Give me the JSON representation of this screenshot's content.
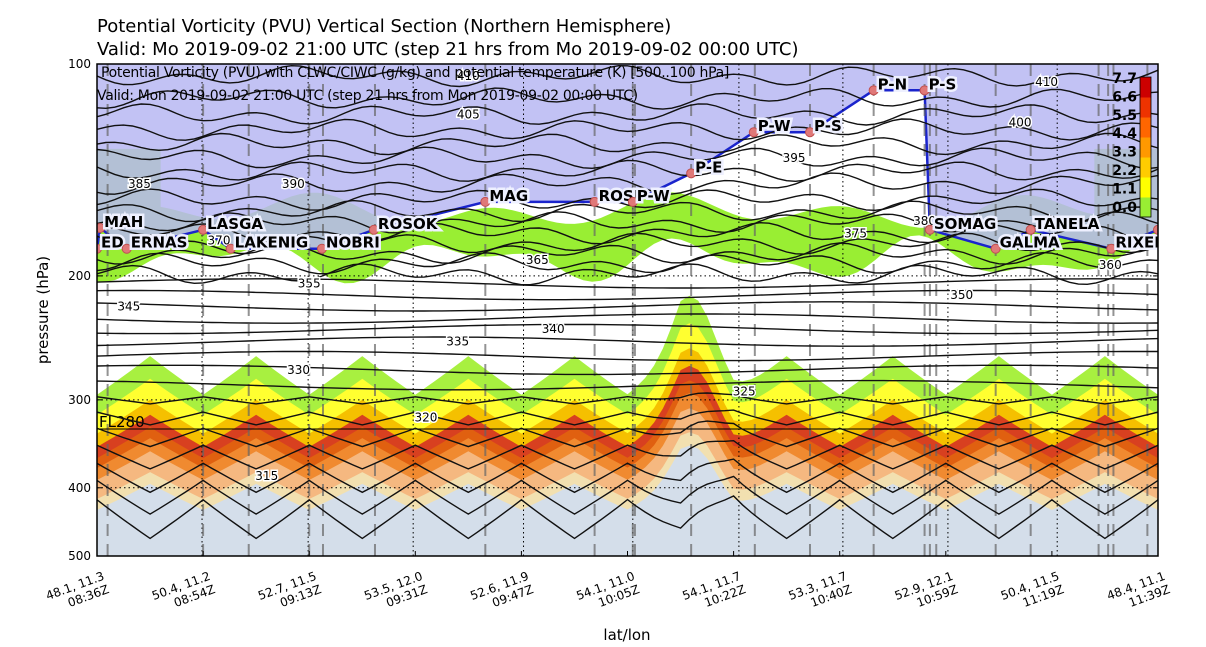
{
  "figure": {
    "title_line1": "Potential Vorticity (PVU) Vertical Section (Northern Hemisphere)",
    "title_line2": "Valid: Mo 2019-09-02 21:00 UTC (step 21 hrs from Mo 2019-09-02 00:00 UTC)",
    "inner_title_line1": "Potential Vorticity (PVU) with CLWC/CIWC (g/kg) and potential temperature (K) [500..100 hPa]",
    "inner_title_line2": "Valid: Mon 2019-09-02 21:00 UTC (step 21 hrs from Mon 2019-09-02 00:00 UTC)"
  },
  "colors": {
    "pv_background": "#d4deea",
    "pv_bands": [
      "#f2e0b0",
      "#f5b880",
      "#f08a30",
      "#e06010",
      "#d84020",
      "#f5c000",
      "#ffff30",
      "#a8f040"
    ],
    "upper_pv": "#99ee33",
    "upper_pv_dark": "#6a9a5a",
    "route_fill": "#b7b7f2",
    "route_line": "#1a24cc",
    "waypoint": "#e07878",
    "colorbar": [
      "#99ee33",
      "#ffff00",
      "#ffcc00",
      "#ff9900",
      "#ff6600",
      "#ee3300",
      "#cc0000"
    ]
  },
  "colorbar_labels": [
    "7.7",
    "6.6",
    "5.5",
    "4.4",
    "3.3",
    "2.2",
    "1.1",
    "0.0"
  ],
  "chart_data": {
    "type": "vertical-cross-section",
    "xlabel": "lat/lon",
    "ylabel": "pressure (hPa)",
    "ylim": [
      500,
      100
    ],
    "y_scale": "log",
    "y_ticks": [
      100,
      200,
      300,
      400,
      500
    ],
    "x_ticks": [
      {
        "latlon": "48.1, 11.3",
        "time": "08:36Z"
      },
      {
        "latlon": "50.4, 11.2",
        "time": "08:54Z"
      },
      {
        "latlon": "52.7, 11.5",
        "time": "09:13Z"
      },
      {
        "latlon": "53.5, 12.0",
        "time": "09:31Z"
      },
      {
        "latlon": "52.6, 11.9",
        "time": "09:47Z"
      },
      {
        "latlon": "54.1, 11.0",
        "time": "10:05Z"
      },
      {
        "latlon": "54.1, 11.7",
        "time": "10:22Z"
      },
      {
        "latlon": "53.3, 11.7",
        "time": "10:40Z"
      },
      {
        "latlon": "52.9, 12.1",
        "time": "10:59Z"
      },
      {
        "latlon": "50.4, 11.5",
        "time": "11:19Z"
      },
      {
        "latlon": "48.4, 11.1",
        "time": "11:39Z"
      }
    ],
    "flight_level_label": "FL280",
    "flight_level_hpa": 330,
    "isentrope_labels": [
      {
        "label": "410",
        "x": 0.35,
        "p": 104
      },
      {
        "label": "405",
        "x": 0.35,
        "p": 118
      },
      {
        "label": "410",
        "x": 0.895,
        "p": 106
      },
      {
        "label": "400",
        "x": 0.87,
        "p": 121
      },
      {
        "label": "395",
        "x": 0.657,
        "p": 136
      },
      {
        "label": "390",
        "x": 0.185,
        "p": 148
      },
      {
        "label": "385",
        "x": 0.04,
        "p": 148
      },
      {
        "label": "380",
        "x": 0.78,
        "p": 167
      },
      {
        "label": "375",
        "x": 0.715,
        "p": 174
      },
      {
        "label": "370",
        "x": 0.115,
        "p": 178
      },
      {
        "label": "365",
        "x": 0.415,
        "p": 190
      },
      {
        "label": "360",
        "x": 0.955,
        "p": 193
      },
      {
        "label": "355",
        "x": 0.2,
        "p": 205
      },
      {
        "label": "350",
        "x": 0.815,
        "p": 213
      },
      {
        "label": "345",
        "x": 0.03,
        "p": 221
      },
      {
        "label": "340",
        "x": 0.43,
        "p": 238
      },
      {
        "label": "335",
        "x": 0.34,
        "p": 248
      },
      {
        "label": "330",
        "x": 0.19,
        "p": 272
      },
      {
        "label": "325",
        "x": 0.61,
        "p": 292
      },
      {
        "label": "320",
        "x": 0.31,
        "p": 318
      },
      {
        "label": "315",
        "x": 0.16,
        "p": 385
      }
    ],
    "route": [
      {
        "name": "EDDN",
        "label": "ED",
        "x": 0.0,
        "p": 183
      },
      {
        "name": "MAH",
        "label": "MAH",
        "x": 0.003,
        "p": 171
      },
      {
        "name": "ERNAS",
        "label": "ERNAS",
        "x": 0.028,
        "p": 183
      },
      {
        "name": "LASGA",
        "label": "LASGA",
        "x": 0.1,
        "p": 172
      },
      {
        "name": "LAKENIG",
        "label": "LAKENIG",
        "x": 0.126,
        "p": 183
      },
      {
        "name": "NOBRI",
        "label": "NOBRI",
        "x": 0.212,
        "p": 183
      },
      {
        "name": "ROSOK",
        "label": "ROSOK",
        "x": 0.261,
        "p": 172
      },
      {
        "name": "MAG",
        "label": "MAG",
        "x": 0.366,
        "p": 157
      },
      {
        "name": "ROSP",
        "label": "ROSP",
        "x": 0.469,
        "p": 157
      },
      {
        "name": "P-W",
        "label": "P-W",
        "x": 0.505,
        "p": 157
      },
      {
        "name": "P-E",
        "label": "P-E",
        "x": 0.56,
        "p": 143
      },
      {
        "name": "P-W",
        "label": "P-W",
        "x": 0.619,
        "p": 125
      },
      {
        "name": "P-S",
        "label": "P-S",
        "x": 0.672,
        "p": 125
      },
      {
        "name": "P-N",
        "label": "P-N",
        "x": 0.732,
        "p": 109
      },
      {
        "name": "P-S",
        "label": "P-S",
        "x": 0.78,
        "p": 109
      },
      {
        "name": "SOMAG",
        "label": "SOMAG",
        "x": 0.785,
        "p": 172
      },
      {
        "name": "GALMA",
        "label": "GALMA",
        "x": 0.847,
        "p": 183
      },
      {
        "name": "TANELA",
        "label": "TANELA",
        "x": 0.88,
        "p": 172
      },
      {
        "name": "RIXEN",
        "label": "RIXEN",
        "x": 0.956,
        "p": 183
      },
      {
        "name": "END",
        "label": "",
        "x": 1.0,
        "p": 172
      }
    ],
    "grid_dotted_x": [
      0.0,
      0.099,
      0.199,
      0.298,
      0.402,
      0.505,
      0.605,
      0.703,
      0.802,
      0.905
    ],
    "grid_dashed_x": [
      0.01,
      0.1,
      0.143,
      0.2,
      0.213,
      0.262,
      0.366,
      0.469,
      0.505,
      0.507,
      0.56,
      0.62,
      0.672,
      0.732,
      0.78,
      0.785,
      0.791,
      0.847,
      0.88,
      0.944,
      0.953,
      0.958,
      0.99
    ]
  }
}
